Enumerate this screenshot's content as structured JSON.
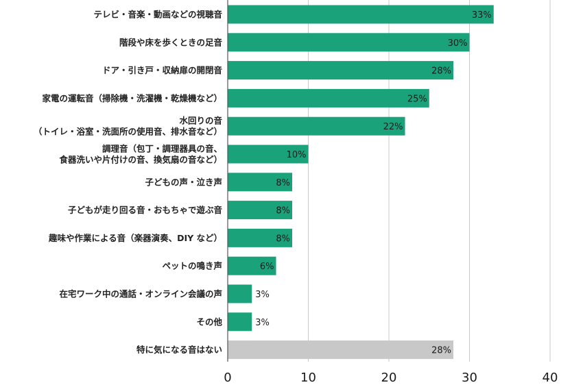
{
  "chart_data": {
    "type": "bar",
    "orientation": "horizontal",
    "categories": [
      [
        "テレビ・音楽・動画などの視聴音"
      ],
      [
        "階段や床を歩くときの足音"
      ],
      [
        "ドア・引き戸・収納扉の開閉音"
      ],
      [
        "家電の運転音（掃除機・洗濯機・乾燥機など）"
      ],
      [
        "水回りの音",
        "（トイレ・浴室・洗面所の使用音、排水音など）"
      ],
      [
        "調理音（包丁・調理器具の音、",
        "食器洗いや片付けの音、換気扇の音など）"
      ],
      [
        "子どもの声・泣き声"
      ],
      [
        "子どもが走り回る音・おもちゃで遊ぶ音"
      ],
      [
        "趣味や作業による音（楽器演奏、DIY など）"
      ],
      [
        "ペットの鳴き声"
      ],
      [
        "在宅ワーク中の通話・オンライン会議の声"
      ],
      [
        "その他"
      ],
      [
        "特に気になる音はない"
      ]
    ],
    "values": [
      33,
      30,
      28,
      25,
      22,
      10,
      8,
      8,
      8,
      6,
      3,
      3,
      28
    ],
    "value_labels": [
      "33%",
      "30%",
      "28%",
      "25%",
      "22%",
      "10%",
      "8%",
      "8%",
      "8%",
      "6%",
      "3%",
      "3%",
      "28%"
    ],
    "xlim": [
      0,
      40
    ],
    "xticks": [
      0,
      10,
      20,
      30,
      40
    ],
    "xtick_labels": [
      "0",
      "10",
      "20",
      "30",
      "40"
    ],
    "grid": true,
    "legend": "none",
    "colors": {
      "bar": "#1aa37a",
      "bar_none": "#c8c8c8",
      "grid": "#c8c8c8",
      "axis": "#555555"
    }
  }
}
